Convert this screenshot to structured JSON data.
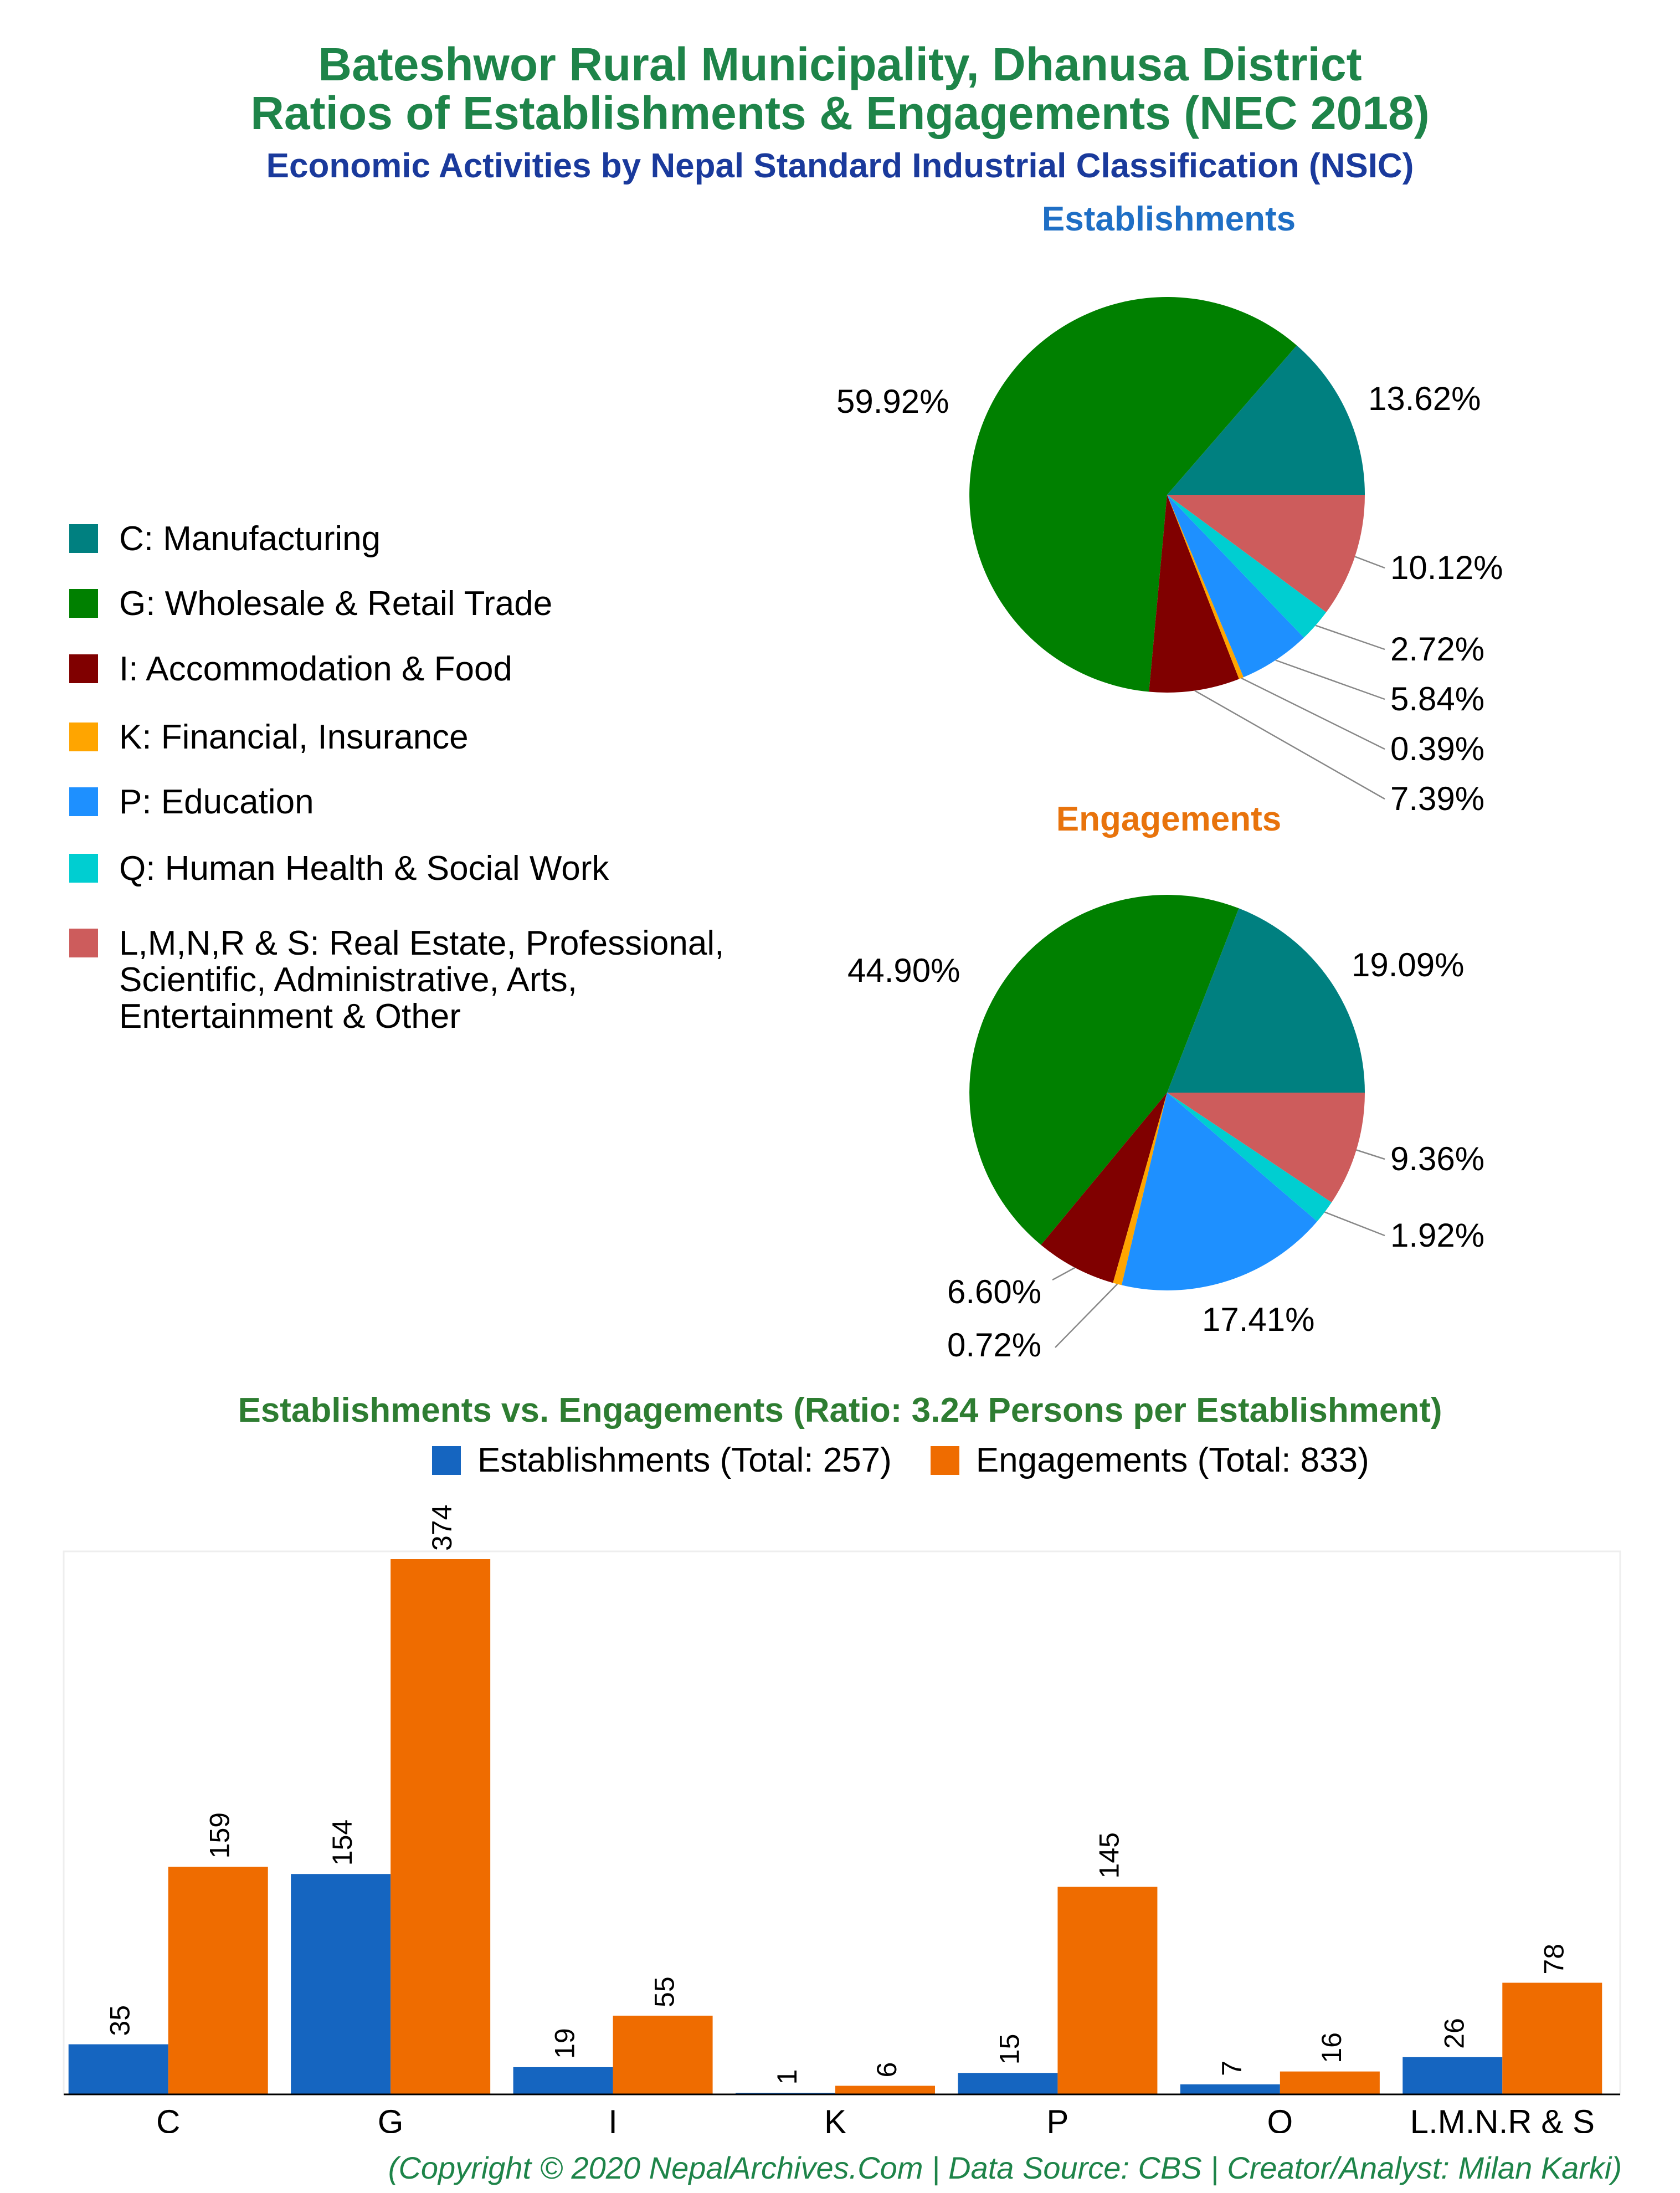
{
  "header": {
    "title_line1": "Bateshwor Rural Municipality, Dhanusa District",
    "title_line2": "Ratios of Establishments & Engagements (NEC 2018)",
    "subtitle": "Economic Activities by Nepal Standard Industrial Classification (NSIC)"
  },
  "legend": [
    {
      "label": "C: Manufacturing",
      "color": "#008080"
    },
    {
      "label": "G: Wholesale & Retail Trade",
      "color": "#008000"
    },
    {
      "label": "I: Accommodation & Food",
      "color": "#800000"
    },
    {
      "label": "K: Financial, Insurance",
      "color": "#ffa500"
    },
    {
      "label": "P: Education",
      "color": "#1e90ff"
    },
    {
      "label": "Q: Human Health & Social Work",
      "color": "#00ced1"
    },
    {
      "label": "L,M,N,R & S: Real Estate, Professional,\nScientific, Administrative, Arts,\nEntertainment & Other",
      "color": "#cd5c5c"
    }
  ],
  "footer": {
    "credit": "(Copyright © 2020 NepalArchives.Com | Data Source: CBS | Creator/Analyst: Milan Karki)"
  },
  "chart_data": [
    {
      "type": "pie",
      "title": "Establishments",
      "title_color": "#1f6fc5",
      "categories": [
        "C",
        "G",
        "I",
        "K",
        "P",
        "Q",
        "L,M,N,R & S"
      ],
      "values": [
        13.62,
        59.92,
        7.39,
        0.39,
        5.84,
        2.72,
        10.12
      ],
      "labels": [
        "13.62%",
        "59.92%",
        "7.39%",
        "0.39%",
        "5.84%",
        "2.72%",
        "10.12%"
      ]
    },
    {
      "type": "pie",
      "title": "Engagements",
      "title_color": "#e8730c",
      "categories": [
        "C",
        "G",
        "I",
        "K",
        "P",
        "Q",
        "L,M,N,R & S"
      ],
      "values": [
        19.09,
        44.9,
        6.6,
        0.72,
        17.41,
        1.92,
        9.36
      ],
      "labels": [
        "19.09%",
        "44.90%",
        "6.60%",
        "0.72%",
        "17.41%",
        "1.92%",
        "9.36%"
      ]
    },
    {
      "type": "bar",
      "title": "Establishments vs. Engagements (Ratio: 3.24 Persons per Establishment)",
      "title_color": "#2e7d32",
      "categories": [
        "C",
        "G",
        "I",
        "K",
        "P",
        "Q",
        "L,M,N,R & S"
      ],
      "series": [
        {
          "name": "Establishments (Total: 257)",
          "color": "#1565c0",
          "values": [
            35,
            154,
            19,
            1,
            15,
            7,
            26
          ]
        },
        {
          "name": "Engagements (Total: 833)",
          "color": "#ef6c00",
          "values": [
            159,
            374,
            55,
            6,
            145,
            16,
            78
          ]
        }
      ],
      "ylim": [
        0,
        400
      ],
      "grid": false,
      "legend": "top-center"
    }
  ]
}
